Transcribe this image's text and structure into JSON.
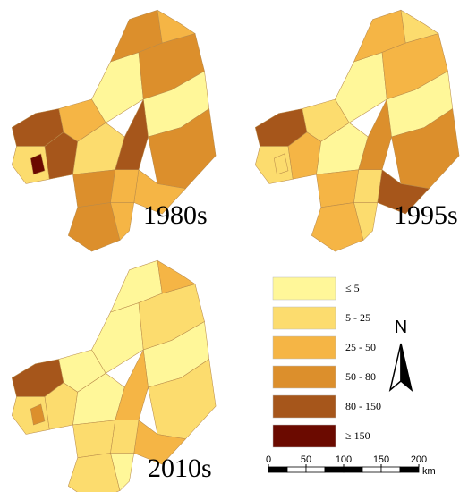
{
  "maps": [
    {
      "label": "1980s",
      "region_classes": [
        4,
        1,
        4,
        2,
        1,
        0,
        3,
        3,
        2,
        0,
        4,
        3,
        2,
        3,
        2,
        3,
        2,
        5
      ]
    },
    {
      "label": "1995s",
      "region_classes": [
        4,
        1,
        2,
        1,
        0,
        0,
        2,
        2,
        1,
        0,
        3,
        3,
        4,
        2,
        1,
        2,
        1,
        1
      ]
    },
    {
      "label": "2010s",
      "region_classes": [
        4,
        1,
        1,
        0,
        0,
        0,
        0,
        1,
        2,
        0,
        2,
        1,
        2,
        1,
        1,
        1,
        0,
        3
      ]
    }
  ],
  "legend": [
    {
      "label": "≤ 5",
      "color": "#fff799"
    },
    {
      "label": "5 - 25",
      "color": "#fcdc6e"
    },
    {
      "label": "25 - 50",
      "color": "#f5b545"
    },
    {
      "label": "50 - 80",
      "color": "#dc8f2c"
    },
    {
      "label": "80 - 150",
      "color": "#a6561b"
    },
    {
      "label": "≥ 150",
      "color": "#6b0a00"
    }
  ],
  "north_label": "N",
  "scale_bar": {
    "ticks": [
      0,
      50,
      100,
      150,
      200
    ],
    "unit": "km"
  }
}
